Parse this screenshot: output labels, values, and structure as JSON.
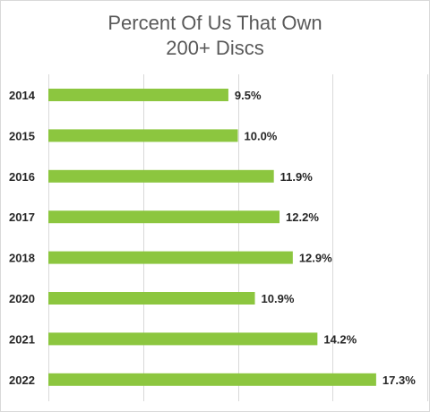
{
  "chart_data": {
    "type": "bar",
    "orientation": "horizontal",
    "title_lines": [
      "Percent Of Us That Own",
      "200+ Discs"
    ],
    "categories": [
      "2014",
      "2015",
      "2016",
      "2017",
      "2018",
      "2020",
      "2021",
      "2022"
    ],
    "values": [
      9.5,
      10.0,
      11.9,
      12.2,
      12.9,
      10.9,
      14.2,
      17.3
    ],
    "value_labels": [
      "9.5%",
      "10.0%",
      "11.9%",
      "12.2%",
      "12.9%",
      "10.9%",
      "14.2%",
      "17.3%"
    ],
    "xlim": [
      0,
      20
    ],
    "grid": true,
    "bar_color": "#8cc63f",
    "grid_color": "#d9d9d9",
    "legend": false
  }
}
